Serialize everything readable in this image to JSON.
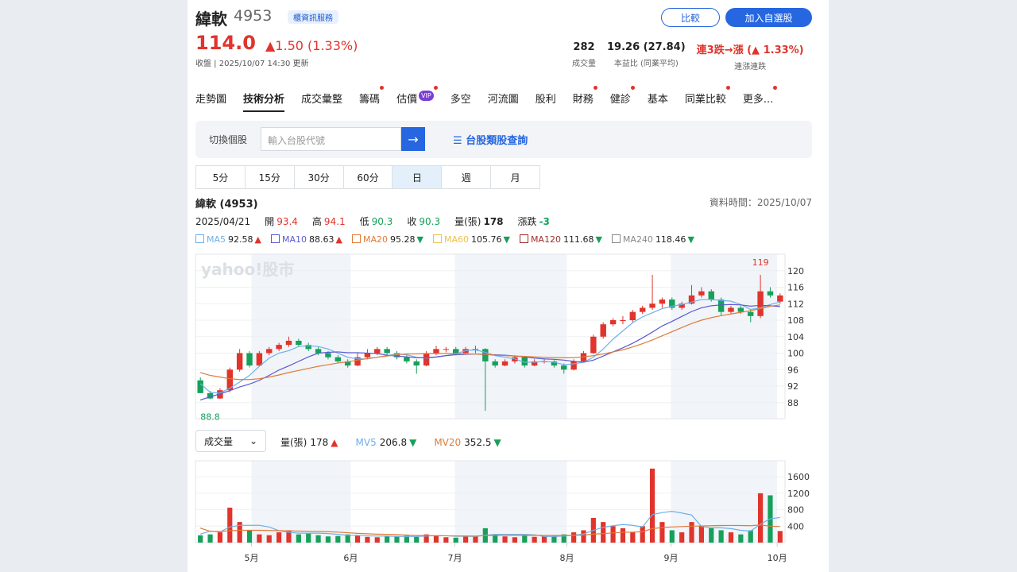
{
  "header": {
    "name": "緯軟",
    "code": "4953",
    "badge": "櫃資訊服務",
    "price": "114.0",
    "change": "▲1.50 (1.33%)",
    "updated": "收盤 | 2025/10/07 14:30 更新",
    "buttons": [
      "比較",
      "加入自選股"
    ],
    "stats": [
      {
        "value": "282",
        "label": "成交量"
      },
      {
        "value": "19.26 (27.84)",
        "label": "本益比 (同業平均)"
      },
      {
        "value": "連3跌→漲 (▲ 1.33%)",
        "label": "連漲連跌"
      }
    ]
  },
  "tabs": [
    {
      "label": "走勢圖"
    },
    {
      "label": "技術分析",
      "active": true
    },
    {
      "label": "成交彙整"
    },
    {
      "label": "籌碼",
      "dot": true
    },
    {
      "label": "估價",
      "badge": "VIP",
      "dot": true
    },
    {
      "label": "多空"
    },
    {
      "label": "河流圖"
    },
    {
      "label": "股利"
    },
    {
      "label": "財務",
      "dot": true
    },
    {
      "label": "健診",
      "dot": true
    },
    {
      "label": "基本"
    },
    {
      "label": "同業比較",
      "dot": true
    },
    {
      "label": "更多...",
      "dot": true
    }
  ],
  "search": {
    "label": "切換個股",
    "placeholder": "輸入台股代號",
    "link": "台股類股查詢"
  },
  "periods": {
    "items": [
      "5分",
      "15分",
      "30分",
      "60分",
      "日",
      "週",
      "月"
    ],
    "selected": "日"
  },
  "chart_data": [
    {
      "type": "candlestick",
      "title": "緯軟 (4953)",
      "data_time": "資料時間：2025/10/07",
      "watermark": "yahoo!股市",
      "info": {
        "date": "2025/04/21",
        "labels": [
          "開",
          "高",
          "低",
          "收",
          "量(張)",
          "漲跌"
        ],
        "change": -3
      },
      "up_color": "#e0342c",
      "down_color": "#16a05a",
      "candles": [
        [
          93.4,
          94.1,
          90.3,
          90.3
        ],
        [
          90.3,
          90.8,
          88.8,
          89
        ],
        [
          89,
          91.5,
          88.9,
          91
        ],
        [
          91,
          96.5,
          90.5,
          96
        ],
        [
          96,
          101,
          95.5,
          100
        ],
        [
          100,
          100.5,
          96.5,
          97
        ],
        [
          97,
          100.5,
          96.8,
          100
        ],
        [
          100,
          101.5,
          99.5,
          101
        ],
        [
          101,
          102.5,
          100.5,
          102
        ],
        [
          102,
          104,
          101.5,
          103
        ],
        [
          103,
          103.5,
          101.5,
          102
        ],
        [
          102,
          102.5,
          100.5,
          101
        ],
        [
          101,
          101.5,
          99.5,
          100
        ],
        [
          100,
          100.5,
          98.5,
          99
        ],
        [
          99,
          99.5,
          97.5,
          98
        ],
        [
          98,
          98.5,
          96.5,
          97
        ],
        [
          97,
          100,
          96.8,
          99
        ],
        [
          99,
          101,
          98.5,
          100
        ],
        [
          100,
          101.5,
          99.5,
          101
        ],
        [
          101,
          101.5,
          99.5,
          100
        ],
        [
          100,
          100.5,
          98.5,
          99
        ],
        [
          99,
          99.5,
          97.5,
          98
        ],
        [
          98,
          98.5,
          95,
          97
        ],
        [
          97,
          100.5,
          96.8,
          100
        ],
        [
          100,
          101.8,
          99.5,
          101
        ],
        [
          101,
          101.5,
          100.2,
          101
        ],
        [
          101,
          101.5,
          99.5,
          100
        ],
        [
          100,
          101.5,
          99.8,
          101
        ],
        [
          101,
          101.8,
          100,
          101
        ],
        [
          101,
          101.2,
          86,
          98
        ],
        [
          98,
          98.5,
          96.5,
          97
        ],
        [
          97,
          98.5,
          96.8,
          98
        ],
        [
          98,
          99.5,
          97.5,
          99
        ],
        [
          99,
          99.3,
          96.5,
          97
        ],
        [
          97,
          98.5,
          96.8,
          98
        ],
        [
          98,
          98.6,
          97.5,
          98
        ],
        [
          98,
          98.3,
          96.5,
          97
        ],
        [
          97,
          97.5,
          95,
          96
        ],
        [
          96,
          98.5,
          95.8,
          98
        ],
        [
          98,
          100.5,
          97.8,
          100
        ],
        [
          100,
          104.5,
          99.8,
          104
        ],
        [
          104,
          107.5,
          103.5,
          107
        ],
        [
          107,
          108.5,
          106.5,
          108
        ],
        [
          108,
          109,
          107,
          108
        ],
        [
          108,
          110.5,
          107.5,
          110
        ],
        [
          110,
          111.5,
          109.5,
          111
        ],
        [
          111,
          119,
          110.5,
          112
        ],
        [
          112,
          113.5,
          111,
          113
        ],
        [
          113,
          113.5,
          110.5,
          111
        ],
        [
          111,
          112.5,
          110.5,
          112
        ],
        [
          112,
          116.5,
          111.8,
          114
        ],
        [
          114,
          116,
          113.5,
          115
        ],
        [
          115,
          115.5,
          112.5,
          113
        ],
        [
          113,
          113.5,
          109,
          110
        ],
        [
          110,
          111.5,
          109.5,
          111
        ],
        [
          111,
          111.5,
          109.5,
          110
        ],
        [
          110,
          110.5,
          107.5,
          109
        ],
        [
          109,
          119,
          108.5,
          115
        ],
        [
          115,
          116,
          113.5,
          114
        ],
        [
          112.5,
          114.5,
          112,
          114
        ]
      ],
      "series": [
        {
          "name": "MA5",
          "color": "#6fb0e8",
          "trend": "▲",
          "values": [
            92.58,
            90.5,
            90.3,
            91.5,
            93,
            94.6,
            96.8,
            98.8,
            100,
            100.6,
            101.6,
            101.8,
            101.6,
            101,
            100,
            99,
            98.6,
            98.6,
            99,
            99.4,
            99.8,
            99.6,
            99,
            98.8,
            99,
            99.4,
            99.8,
            100.6,
            100.8,
            100.2,
            99.4,
            99,
            98.6,
            97.8,
            97.8,
            98,
            97.8,
            97.2,
            97.4,
            97.8,
            99,
            101,
            103.4,
            105.4,
            107.4,
            108.8,
            109.8,
            110.8,
            111.4,
            111.8,
            112.4,
            113,
            113,
            112.8,
            112.6,
            111.8,
            110.6,
            111,
            111.8,
            112.4
          ]
        },
        {
          "name": "MA10",
          "color": "#5a5ad0",
          "trend": "▲",
          "values": [
            88.63,
            89.4,
            90.1,
            90.9,
            91.8,
            92.5,
            93.4,
            94.6,
            95.9,
            96.9,
            98,
            99.1,
            100,
            100.2,
            100.3,
            100.1,
            100.1,
            100,
            99.9,
            99.5,
            99.3,
            99.1,
            98.9,
            98.9,
            99.1,
            99.4,
            99.6,
            99.7,
            99.8,
            99.6,
            99.6,
            99.5,
            99.3,
            99.1,
            98.8,
            98.6,
            98.5,
            98.3,
            98,
            97.8,
            98.3,
            99.3,
            100.3,
            101.3,
            102.4,
            103.7,
            105.1,
            106.6,
            107.7,
            108.9,
            110.1,
            111,
            111.5,
            111.7,
            111.8,
            111.7,
            111.4,
            111.6,
            111.5,
            111.3
          ]
        },
        {
          "name": "MA20",
          "color": "#e07b39",
          "trend": "▼",
          "values": [
            95.28,
            94.6,
            94.2,
            93.8,
            93.6,
            93.6,
            93.8,
            94.2,
            94.7,
            95.3,
            95.8,
            96.3,
            96.8,
            97.2,
            97.6,
            97.9,
            98.3,
            98.7,
            99,
            99.3,
            99.6,
            99.8,
            99.8,
            99.9,
            99.9,
            99.9,
            99.9,
            99.8,
            99.8,
            99.7,
            99.5,
            99.4,
            99.3,
            99.2,
            99.1,
            99,
            98.9,
            98.9,
            98.9,
            99.1,
            99.4,
            99.8,
            100.3,
            100.8,
            101.5,
            102.3,
            103.2,
            104.2,
            105.2,
            106.2,
            107.2,
            108,
            108.6,
            109.1,
            109.5,
            109.9,
            110.3,
            110.8,
            111.4,
            111.7
          ]
        },
        {
          "name": "MA60",
          "color": "#f0c04a",
          "trend": "▼",
          "value": 105.76
        },
        {
          "name": "MA120",
          "color": "#a0302a",
          "trend": "▼",
          "value": 111.68
        },
        {
          "name": "MA240",
          "color": "#888888",
          "trend": "▼",
          "value": 118.46
        }
      ],
      "annotations": {
        "high": 119,
        "low": 88.8
      },
      "xlim": [
        -0.5,
        59.5
      ],
      "ylim": [
        84.1,
        124
      ],
      "yticks": [
        88,
        92,
        96,
        100,
        104,
        108,
        112,
        116,
        120
      ],
      "grid": true
    },
    {
      "type": "bar",
      "selector": "成交量",
      "series": [
        {
          "name": "量(張)",
          "trend": "▲",
          "values": [
            178,
            200,
            250,
            850,
            500,
            300,
            200,
            180,
            250,
            300,
            200,
            220,
            180,
            150,
            160,
            200,
            180,
            140,
            130,
            150,
            160,
            170,
            140,
            200,
            180,
            130,
            120,
            150,
            160,
            350,
            200,
            150,
            130,
            170,
            140,
            150,
            160,
            200,
            250,
            300,
            600,
            500,
            400,
            350,
            250,
            400,
            1800,
            500,
            300,
            250,
            500,
            400,
            350,
            300,
            250,
            200,
            300,
            1200,
            1150,
            282
          ]
        },
        {
          "name": "MV5",
          "color": "#6fb0e8",
          "trend": "▼",
          "values": [
            206.8,
            280,
            260,
            380,
            420,
            420,
            420,
            380,
            290,
            250,
            230,
            230,
            230,
            220,
            200,
            180,
            175,
            165,
            160,
            160,
            150,
            150,
            150,
            160,
            170,
            165,
            155,
            155,
            150,
            180,
            200,
            200,
            200,
            200,
            190,
            150,
            150,
            160,
            180,
            210,
            300,
            370,
            410,
            440,
            420,
            380,
            680,
            730,
            760,
            720,
            670,
            390,
            360,
            360,
            340,
            300,
            280,
            450,
            580,
            610
          ]
        },
        {
          "name": "MV20",
          "color": "#e07b39",
          "trend": "▼",
          "values": [
            352.5,
            275,
            270,
            290,
            300,
            300,
            300,
            295,
            290,
            285,
            280,
            275,
            270,
            265,
            255,
            240,
            225,
            215,
            205,
            200,
            195,
            185,
            175,
            170,
            168,
            165,
            163,
            162,
            160,
            170,
            175,
            175,
            175,
            176,
            177,
            175,
            175,
            175,
            178,
            185,
            205,
            220,
            235,
            250,
            255,
            265,
            340,
            365,
            380,
            390,
            400,
            405,
            410,
            415,
            417,
            415,
            410,
            430,
            400,
            390
          ]
        }
      ],
      "xlim": [
        -0.5,
        59.5
      ],
      "ylim": [
        0,
        1990
      ],
      "yticks": [
        400,
        800,
        1200,
        1600
      ],
      "grid": true,
      "xticks": [
        {
          "value": 5.2,
          "label": "5月"
        },
        {
          "value": 15.3,
          "label": "6月"
        },
        {
          "value": 25.9,
          "label": "7月"
        },
        {
          "value": 37.3,
          "label": "8月"
        },
        {
          "value": 47.9,
          "label": "9月"
        },
        {
          "value": 58.7,
          "label": "10月"
        }
      ]
    }
  ]
}
